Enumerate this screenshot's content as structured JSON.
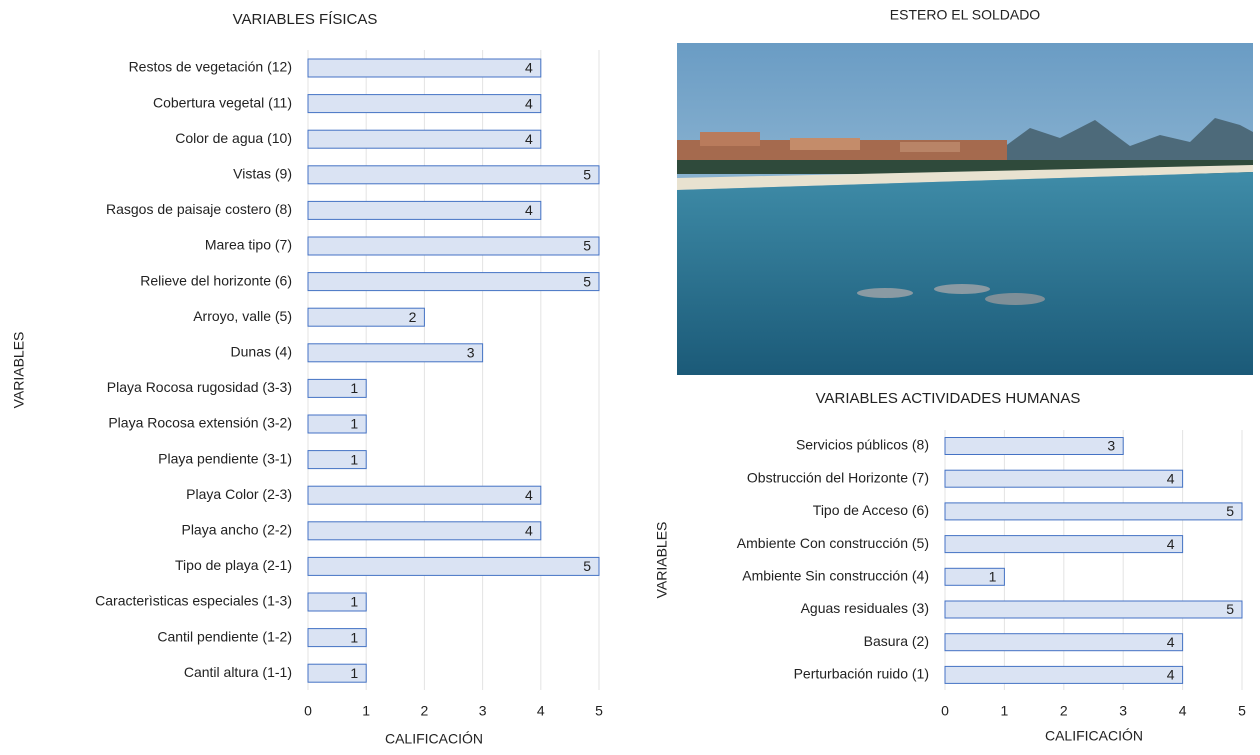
{
  "chart_data": [
    {
      "type": "bar",
      "orientation": "horizontal",
      "title": "VARIABLES FÍSICAS",
      "x_label": "CALIFICACIÓN",
      "y_label": "VARIABLES",
      "categories": [
        "Restos de vegetación (12)",
        "Cobertura vegetal (11)",
        "Color de agua (10)",
        "Vistas (9)",
        "Rasgos de paisaje costero (8)",
        "Marea tipo (7)",
        "Relieve del horizonte (6)",
        "Arroyo, valle (5)",
        "Dunas (4)",
        "Playa Rocosa rugosidad (3-3)",
        "Playa Rocosa extensión (3-2)",
        "Playa pendiente (3-1)",
        "Playa Color (2-3)",
        "Playa ancho (2-2)",
        "Tipo de playa (2-1)",
        "Caracterìsticas especiales (1-3)",
        "Cantil pendiente (1-2)",
        "Cantil altura (1-1)"
      ],
      "values": [
        4,
        4,
        4,
        5,
        4,
        5,
        5,
        2,
        3,
        1,
        1,
        1,
        4,
        4,
        5,
        1,
        1,
        1
      ],
      "color": "#dae3f3",
      "edge_color": "#4472c4",
      "xlim": [
        0,
        5
      ],
      "xticks": [
        0,
        1,
        2,
        3,
        4,
        5
      ],
      "grid": true
    },
    {
      "type": "bar",
      "orientation": "horizontal",
      "title": "VARIABLES ACTIVIDADES HUMANAS",
      "x_label": "CALIFICACIÓN",
      "y_label": "VARIABLES",
      "categories": [
        "Servicios públicos (8)",
        "Obstrucción del Horizonte (7)",
        "Tipo de Acceso (6)",
        "Ambiente Con construcción (5)",
        "Ambiente Sin construcción (4)",
        "Aguas residuales (3)",
        "Basura (2)",
        "Perturbación ruido (1)"
      ],
      "values": [
        3,
        4,
        5,
        4,
        1,
        5,
        4,
        4
      ],
      "color": "#dae3f3",
      "edge_color": "#4472c4",
      "xlim": [
        0,
        5
      ],
      "xticks": [
        0,
        1,
        2,
        3,
        4,
        5
      ],
      "grid": true
    }
  ],
  "photo": {
    "title": "ESTERO EL SOLDADO"
  }
}
